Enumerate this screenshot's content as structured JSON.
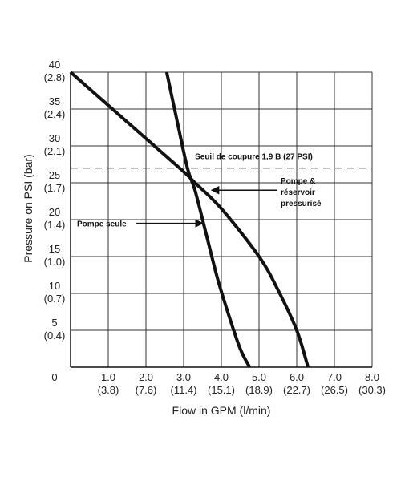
{
  "chart_data": {
    "type": "line",
    "title": "",
    "xlabel": "Flow in GPM (l/min)",
    "ylabel": "Pressure on PSI (bar)",
    "xlim": [
      0,
      8
    ],
    "ylim": [
      0,
      40
    ],
    "grid": true,
    "x_ticks": [
      {
        "value": 1,
        "label": "1.0",
        "sub": "(3.8)"
      },
      {
        "value": 2,
        "label": "2.0",
        "sub": "(7.6)"
      },
      {
        "value": 3,
        "label": "3.0",
        "sub": "(11.4)"
      },
      {
        "value": 4,
        "label": "4.0",
        "sub": "(15.1)"
      },
      {
        "value": 5,
        "label": "5.0",
        "sub": "(18.9)"
      },
      {
        "value": 6,
        "label": "6.0",
        "sub": "(22.7)"
      },
      {
        "value": 7,
        "label": "7.0",
        "sub": "(26.5)"
      },
      {
        "value": 8,
        "label": "8.0",
        "sub": "(30.3)"
      }
    ],
    "y_ticks": [
      {
        "value": 40,
        "label": "40",
        "sub": "(2.8)"
      },
      {
        "value": 35,
        "label": "35",
        "sub": "(2.4)"
      },
      {
        "value": 30,
        "label": "30",
        "sub": "(2.1)"
      },
      {
        "value": 25,
        "label": "25",
        "sub": "(1.7)"
      },
      {
        "value": 20,
        "label": "20",
        "sub": "(1.4)"
      },
      {
        "value": 15,
        "label": "15",
        "sub": "(1.0)"
      },
      {
        "value": 10,
        "label": "10",
        "sub": "(0.7)"
      },
      {
        "value": 5,
        "label": "5",
        "sub": "(0.4)"
      }
    ],
    "origin_label": "0",
    "series": [
      {
        "name": "Pompe seule",
        "x": [
          2.55,
          2.8,
          3.1,
          3.3,
          3.6,
          3.9,
          4.2,
          4.5,
          4.75
        ],
        "y": [
          40,
          34,
          27,
          24,
          18,
          12,
          7,
          2.5,
          0
        ]
      },
      {
        "name": "Pompe & réservoir pressurisé",
        "x": [
          0,
          1,
          2,
          3,
          3.3,
          4,
          5,
          5.5,
          6,
          6.3
        ],
        "y": [
          40,
          35.5,
          31,
          26.5,
          25,
          21.5,
          15,
          10.5,
          5,
          0
        ]
      }
    ],
    "reference_line": {
      "y": 27,
      "style": "dashed",
      "label": "Seuil de coupure 1,9 B (27 PSI)"
    },
    "annotations": [
      {
        "text": "Pompe seule",
        "target_x": 3.55,
        "target_y": 19.5
      },
      {
        "lines": [
          "Pompe &",
          "réservoir",
          "pressurisé"
        ],
        "target_x": 3.7,
        "target_y": 24
      }
    ]
  }
}
